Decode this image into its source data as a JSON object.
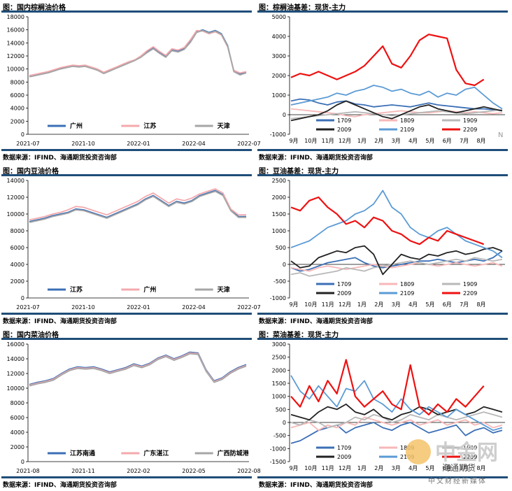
{
  "colors": {
    "rule": "#1f4e79",
    "blue": "#3b6fb6",
    "pink": "#f4a9ad",
    "gray": "#a6a6a6",
    "black": "#222222",
    "lightblue": "#5b9bd5",
    "red": "#ee1111",
    "lightpink": "#f7b7b7",
    "lightgray": "#b8b8b8"
  },
  "source_text": "数据来源：IFIND、海通期货投资咨询部",
  "watermark": {
    "cn": "中金网",
    "sub": "海通期货",
    "tag": "中文财经新媒体",
    "mark": "N"
  },
  "chart_data": [
    {
      "id": "palm-price",
      "type": "line",
      "title": "图：国内棕榈油价格",
      "x_ticks": [
        "2021-07",
        "2021-10",
        "2022-01",
        "2022-04",
        "2022-07"
      ],
      "ylim": [
        0,
        18000
      ],
      "y_ticks": [
        "0",
        "2000",
        "4000",
        "6000",
        "8000",
        "10000",
        "12000",
        "14000",
        "16000",
        "18000"
      ],
      "legend": [
        "广州",
        "江苏",
        "天津"
      ],
      "series": [
        {
          "name": "广州",
          "color": "blue",
          "values": [
            8900,
            9100,
            9300,
            9500,
            9800,
            10100,
            10300,
            10500,
            10400,
            10500,
            10200,
            9900,
            9400,
            9800,
            10200,
            10600,
            11000,
            11300,
            11900,
            12600,
            13200,
            12500,
            11900,
            12900,
            12700,
            13100,
            14200,
            15700,
            16000,
            15600,
            15900,
            15400,
            13600,
            9700,
            9200,
            9500
          ]
        },
        {
          "name": "江苏",
          "color": "pink",
          "values": [
            9000,
            9200,
            9400,
            9600,
            9900,
            10200,
            10400,
            10600,
            10500,
            10600,
            10300,
            10000,
            9500,
            9900,
            10300,
            10700,
            11100,
            11400,
            12000,
            12800,
            13400,
            12700,
            12100,
            13100,
            12900,
            13300,
            14500,
            15900,
            15800,
            15400,
            15700,
            15200,
            13400,
            9800,
            9400,
            9600
          ]
        },
        {
          "name": "天津",
          "color": "gray",
          "values": [
            8800,
            9000,
            9200,
            9400,
            9700,
            10000,
            10200,
            10400,
            10300,
            10400,
            10100,
            9800,
            9300,
            9700,
            10100,
            10500,
            10900,
            11300,
            11800,
            12500,
            13100,
            12400,
            11800,
            12800,
            12600,
            13000,
            14100,
            15600,
            15900,
            15500,
            15800,
            15300,
            13500,
            9600,
            9100,
            9400
          ]
        }
      ]
    },
    {
      "id": "palm-basis",
      "type": "line",
      "title": "图：棕榈油基差：现货-主力",
      "x_ticks": [
        "9月",
        "10月",
        "11月",
        "12月",
        "1月",
        "2月",
        "3月",
        "4月",
        "5月",
        "6月",
        "7月",
        "8月"
      ],
      "ylim": [
        -1000,
        5000
      ],
      "y_ticks": [
        "-1000",
        "0",
        "1000",
        "2000",
        "3000",
        "4000",
        "5000"
      ],
      "legend": [
        "1709",
        "1809",
        "1909",
        "2009",
        "2109",
        "2209"
      ],
      "series": [
        {
          "name": "1709",
          "color": "blue",
          "values": [
            700,
            800,
            750,
            600,
            500,
            650,
            700,
            550,
            500,
            400,
            450,
            500,
            450,
            400,
            500,
            600,
            500,
            450,
            400,
            350,
            300,
            300,
            250,
            200
          ]
        },
        {
          "name": "1809",
          "color": "lightpink",
          "values": [
            300,
            250,
            200,
            150,
            100,
            50,
            -50,
            -100,
            0,
            50,
            100,
            150,
            200,
            150,
            100,
            100,
            150,
            200,
            150,
            100,
            150,
            100,
            50,
            100
          ]
        },
        {
          "name": "1909",
          "color": "lightgray",
          "values": [
            -200,
            -150,
            -100,
            -50,
            0,
            50,
            100,
            150,
            100,
            50,
            0,
            -50,
            0,
            50,
            100,
            150,
            200,
            150,
            100,
            50,
            100,
            150,
            200,
            250
          ]
        },
        {
          "name": "2009",
          "color": "black",
          "values": [
            -300,
            -200,
            -100,
            0,
            200,
            500,
            700,
            500,
            300,
            100,
            -100,
            -200,
            0,
            200,
            400,
            500,
            300,
            200,
            100,
            200,
            300,
            400,
            300,
            200
          ]
        },
        {
          "name": "2109",
          "color": "lightblue",
          "values": [
            500,
            600,
            700,
            800,
            900,
            1100,
            1000,
            1200,
            1300,
            1500,
            1400,
            1200,
            1300,
            1100,
            1000,
            1200,
            900,
            1100,
            1000,
            1300,
            1400,
            1000,
            600,
            300
          ]
        },
        {
          "name": "2209",
          "color": "red",
          "values": [
            1900,
            2100,
            2000,
            2200,
            2000,
            1800,
            2000,
            2200,
            2500,
            3000,
            3500,
            2600,
            2400,
            3000,
            3800,
            4100,
            4000,
            3900,
            2300,
            1600,
            1500,
            1800,
            null,
            null
          ]
        }
      ]
    },
    {
      "id": "soy-price",
      "type": "line",
      "title": "图：国内豆油价格",
      "x_ticks": [
        "2021-07",
        "2021-10",
        "2022-01",
        "2022-04",
        "2022-07"
      ],
      "ylim": [
        0,
        14000
      ],
      "y_ticks": [
        "0",
        "2000",
        "4000",
        "6000",
        "8000",
        "10000",
        "12000",
        "14000"
      ],
      "legend": [
        "江苏",
        "广州",
        "天津"
      ],
      "series": [
        {
          "name": "江苏",
          "color": "blue",
          "values": [
            9100,
            9300,
            9500,
            9800,
            10000,
            10200,
            10600,
            10500,
            10200,
            9900,
            9600,
            10000,
            10400,
            10800,
            11200,
            11800,
            12200,
            11600,
            11000,
            11500,
            11300,
            11600,
            12200,
            12500,
            12800,
            12300,
            10500,
            9700,
            9700
          ]
        },
        {
          "name": "广州",
          "color": "pink",
          "values": [
            9300,
            9500,
            9700,
            10000,
            10200,
            10500,
            10900,
            10800,
            10500,
            10200,
            9900,
            10300,
            10700,
            11100,
            11500,
            12100,
            12500,
            11900,
            11300,
            11800,
            11600,
            11900,
            12400,
            12700,
            13000,
            12500,
            10600,
            9900,
            9900
          ]
        },
        {
          "name": "天津",
          "color": "gray",
          "values": [
            9000,
            9200,
            9400,
            9700,
            9900,
            10100,
            10500,
            10400,
            10100,
            9800,
            9500,
            9900,
            10300,
            10700,
            11100,
            11700,
            12100,
            11500,
            10900,
            11400,
            11200,
            11500,
            12100,
            12400,
            12700,
            12200,
            10400,
            9600,
            9600
          ]
        }
      ]
    },
    {
      "id": "soy-basis",
      "type": "line",
      "title": "图：豆油基差：现货-主力",
      "x_ticks": [
        "9月",
        "10月",
        "11月",
        "12月",
        "1月",
        "2月",
        "3月",
        "4月",
        "5月",
        "6月",
        "7月",
        "8月"
      ],
      "ylim": [
        -1000,
        2500
      ],
      "y_ticks": [
        "-1000",
        "-500",
        "0",
        "500",
        "1000",
        "1500",
        "2000",
        "2500"
      ],
      "legend": [
        "1709",
        "1809",
        "1909",
        "2009",
        "2109",
        "2209"
      ],
      "series": [
        {
          "name": "1709",
          "color": "blue",
          "values": [
            -100,
            -200,
            -150,
            -50,
            50,
            100,
            150,
            200,
            50,
            -50,
            -100,
            -50,
            0,
            50,
            100,
            100,
            150,
            100,
            50,
            100,
            150,
            100,
            200,
            400
          ]
        },
        {
          "name": "1809",
          "color": "lightpink",
          "values": [
            -100,
            -150,
            -200,
            -100,
            -50,
            -100,
            -150,
            -100,
            -50,
            0,
            -50,
            -100,
            -50,
            0,
            50,
            0,
            -50,
            0,
            50,
            0,
            -50,
            0,
            50,
            -50
          ]
        },
        {
          "name": "1909",
          "color": "lightgray",
          "values": [
            -300,
            -250,
            -350,
            -300,
            -250,
            -200,
            -100,
            -150,
            -200,
            -100,
            -50,
            0,
            50,
            100,
            50,
            0,
            50,
            100,
            150,
            100,
            200,
            150,
            100,
            150
          ]
        },
        {
          "name": "2009",
          "color": "black",
          "values": [
            100,
            -100,
            -50,
            200,
            300,
            400,
            350,
            500,
            550,
            300,
            -300,
            0,
            300,
            200,
            150,
            300,
            250,
            350,
            400,
            300,
            350,
            450,
            500,
            400
          ]
        },
        {
          "name": "2109",
          "color": "lightblue",
          "values": [
            500,
            600,
            700,
            900,
            1100,
            1200,
            1300,
            1500,
            1600,
            1800,
            2200,
            1700,
            1500,
            1100,
            900,
            800,
            1000,
            1100,
            900,
            700,
            600,
            500,
            400,
            200
          ]
        },
        {
          "name": "2209",
          "color": "red",
          "values": [
            1700,
            1600,
            1900,
            2000,
            1700,
            1500,
            1200,
            1300,
            1100,
            1400,
            1300,
            1000,
            900,
            700,
            600,
            800,
            700,
            1000,
            900,
            800,
            700,
            600,
            null,
            null
          ]
        }
      ]
    },
    {
      "id": "rapeseed-price",
      "type": "line",
      "title": "图：国内菜油价格",
      "x_ticks": [
        "2021-08",
        "2021-11",
        "2022-02",
        "2022-05",
        "2022-08"
      ],
      "ylim": [
        0,
        16000
      ],
      "y_ticks": [
        "0",
        "2000",
        "4000",
        "6000",
        "8000",
        "10000",
        "12000",
        "14000",
        "16000"
      ],
      "legend": [
        "江苏南通",
        "广东湛江",
        "广西防城港"
      ],
      "series": [
        {
          "name": "江苏南通",
          "color": "blue",
          "values": [
            10500,
            10800,
            11000,
            11300,
            12000,
            12600,
            12900,
            12800,
            12900,
            12600,
            12200,
            12500,
            12800,
            13300,
            13000,
            13400,
            14100,
            14500,
            14000,
            14400,
            14900,
            14800,
            12500,
            11000,
            11400,
            12200,
            12800,
            13200
          ]
        },
        {
          "name": "广东湛江",
          "color": "pink",
          "values": [
            10400,
            10700,
            10900,
            11200,
            11900,
            12500,
            12800,
            12700,
            12800,
            12500,
            12100,
            12400,
            12700,
            13200,
            12900,
            13300,
            14000,
            14400,
            13900,
            14300,
            14800,
            14700,
            12400,
            10900,
            11300,
            12100,
            12700,
            13100
          ]
        },
        {
          "name": "广西防城港",
          "color": "gray",
          "values": [
            10300,
            10600,
            10800,
            11100,
            11800,
            12400,
            12700,
            12600,
            12700,
            12400,
            12000,
            12300,
            12600,
            13100,
            12800,
            13200,
            13900,
            14300,
            13800,
            14200,
            14700,
            14600,
            12300,
            10800,
            11200,
            12000,
            12600,
            13000
          ]
        }
      ]
    },
    {
      "id": "rapeseed-basis",
      "type": "line",
      "title": "图：菜油基差：现货-主力",
      "x_ticks": [
        "9月",
        "10月",
        "11月",
        "12月",
        "1月",
        "2月",
        "3月",
        "4月",
        "5月",
        "6月",
        "7月",
        "8月"
      ],
      "ylim": [
        -1500,
        3000
      ],
      "y_ticks": [
        "-1500",
        "-1000",
        "-500",
        "0",
        "500",
        "1000",
        "1500",
        "2000",
        "2500",
        "3000"
      ],
      "legend": [
        "1709",
        "1809",
        "1909",
        "2009",
        "2109",
        "2209"
      ],
      "series": [
        {
          "name": "1709",
          "color": "blue",
          "values": [
            -800,
            -700,
            -500,
            -300,
            -200,
            -100,
            -400,
            -200,
            -100,
            0,
            -200,
            -300,
            -100,
            0,
            -200,
            -400,
            -300,
            -200,
            -100,
            -500,
            -300,
            -200,
            -400,
            -300
          ]
        },
        {
          "name": "1809",
          "color": "lightpink",
          "values": [
            -200,
            -100,
            0,
            -300,
            -100,
            -200,
            0,
            -100,
            200,
            100,
            0,
            -100,
            0,
            100,
            -100,
            0,
            100,
            -100,
            0,
            100,
            -100,
            0,
            -200,
            -100
          ]
        },
        {
          "name": "1909",
          "color": "lightgray",
          "values": [
            0,
            -100,
            100,
            0,
            -200,
            -100,
            0,
            200,
            100,
            300,
            200,
            0,
            100,
            300,
            200,
            100,
            300,
            200,
            100,
            200,
            300,
            400,
            300,
            200
          ]
        },
        {
          "name": "2009",
          "color": "black",
          "values": [
            300,
            200,
            100,
            400,
            600,
            500,
            700,
            400,
            300,
            500,
            200,
            100,
            300,
            400,
            600,
            500,
            300,
            400,
            500,
            300,
            400,
            600,
            500,
            400
          ]
        },
        {
          "name": "2109",
          "color": "lightblue",
          "values": [
            1800,
            1200,
            900,
            1400,
            1000,
            600,
            1300,
            1200,
            1600,
            900,
            700,
            400,
            900,
            500,
            300,
            600,
            400,
            200,
            500,
            300,
            100,
            -100,
            -300,
            -200
          ]
        },
        {
          "name": "2209",
          "color": "red",
          "values": [
            1000,
            600,
            1400,
            800,
            1600,
            1100,
            2400,
            1000,
            600,
            900,
            1200,
            700,
            500,
            2200,
            600,
            300,
            700,
            400,
            900,
            600,
            1000,
            1400,
            null,
            null
          ]
        }
      ]
    }
  ]
}
